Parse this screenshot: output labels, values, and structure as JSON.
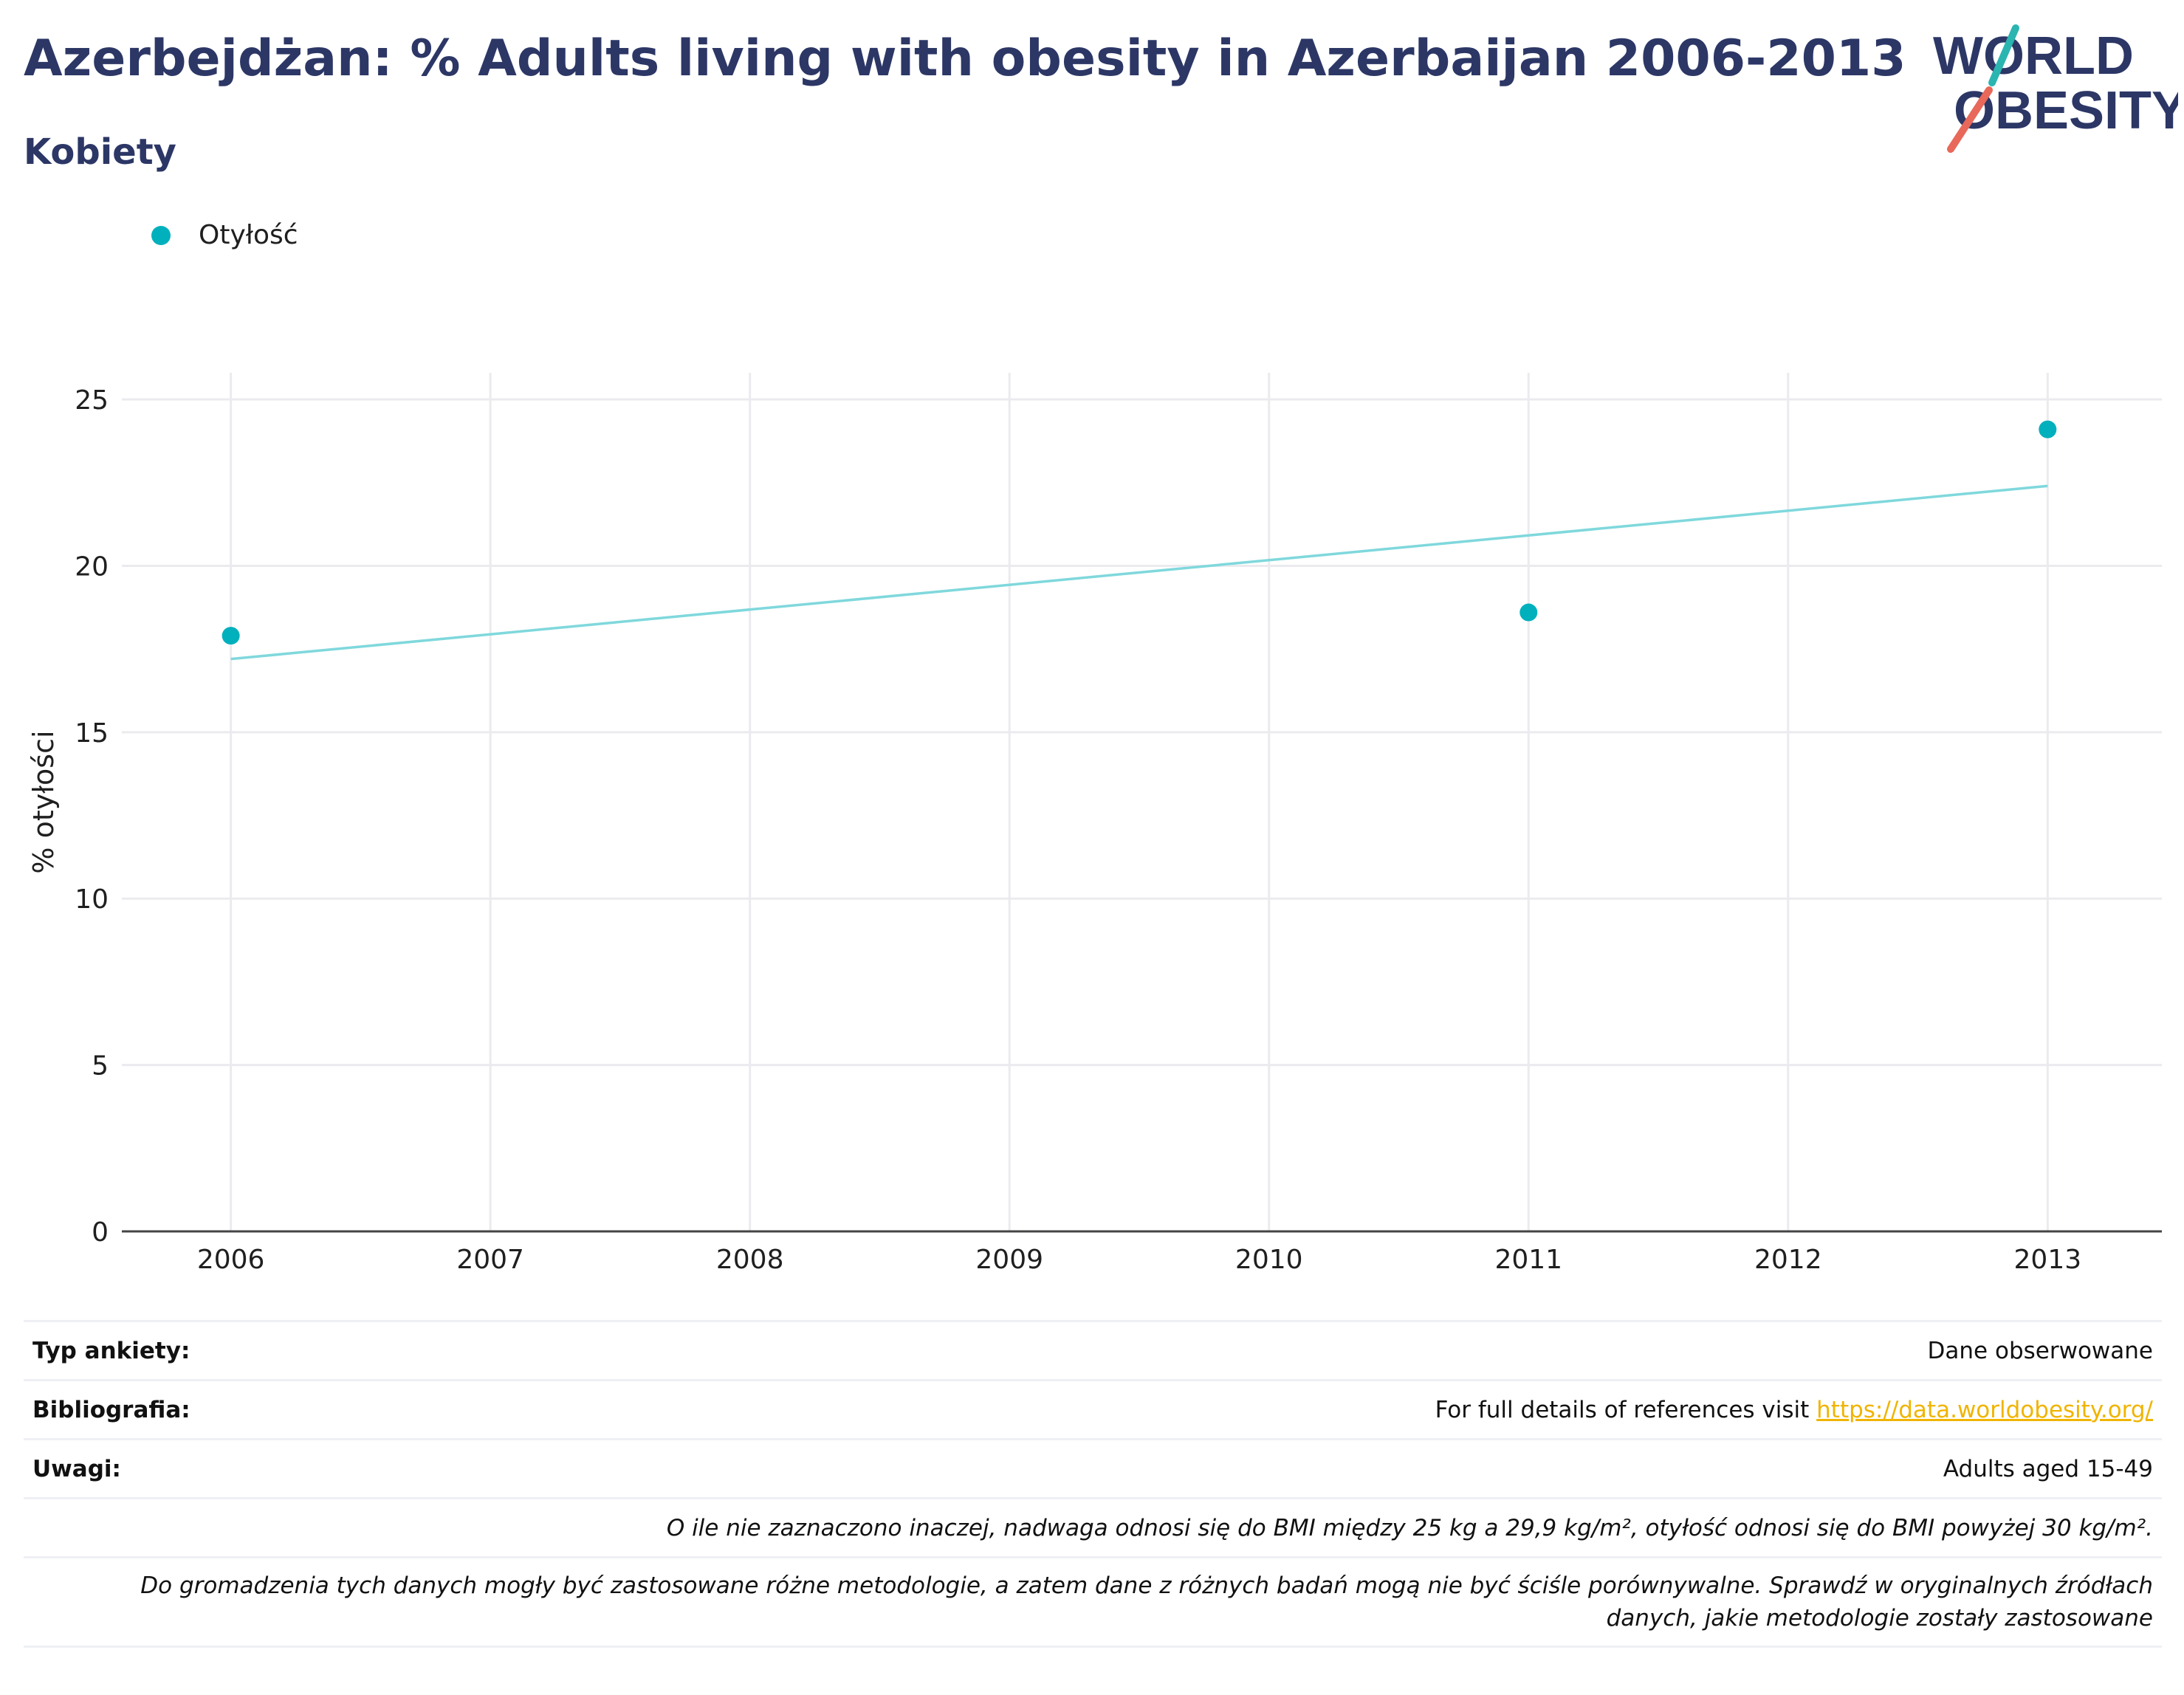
{
  "header": {
    "title": "Azerbejdżan: % Adults living with obesity in Azerbaijan 2006-2013",
    "subtitle": "Kobiety"
  },
  "logo": {
    "line1": "WORLD",
    "line2": "OBESITY",
    "teal_color": "#2bb5b0",
    "red_color": "#e8685a",
    "text_color": "#2c3766"
  },
  "legend": {
    "label": "Otyłość",
    "color": "#00b0bc"
  },
  "chart_data": {
    "type": "scatter",
    "ylabel": "% otyłości",
    "xlabel": "",
    "x_ticks": [
      "2006",
      "2007",
      "2008",
      "2009",
      "2010",
      "2011",
      "2012",
      "2013"
    ],
    "y_ticks": [
      "0",
      "5",
      "10",
      "15",
      "20",
      "25"
    ],
    "xlim": [
      2005.58,
      2013.44
    ],
    "ylim": [
      0,
      25.8
    ],
    "grid": true,
    "legend_position": "top-left",
    "series": [
      {
        "name": "Otyłość",
        "color": "#00b0bc",
        "points": [
          {
            "x": 2006,
            "y": 17.9
          },
          {
            "x": 2011,
            "y": 18.6
          },
          {
            "x": 2013,
            "y": 24.1
          }
        ]
      }
    ],
    "trendline": {
      "color": "#7fd8dc",
      "x": [
        2006,
        2013
      ],
      "y": [
        17.2,
        22.4
      ]
    }
  },
  "info": {
    "survey_type_label": "Typ ankiety:",
    "survey_type_value": "Dane obserwowane",
    "bibliography_label": "Bibliografia:",
    "bibliography_text": "For full details of references visit ",
    "bibliography_link": "https://data.worldobesity.org/",
    "notes_label": "Uwagi:",
    "notes_value": "Adults aged 15-49",
    "definition_note": "O ile nie zaznaczono inaczej, nadwaga odnosi się do BMI między 25 kg a 29,9 kg/m², otyłość odnosi się do BMI powyżej 30 kg/m².",
    "methodology_note_line1": "Do gromadzenia tych danych mogły być zastosowane różne metodologie, a zatem dane z różnych badań mogą nie być ściśle porównywalne. Sprawdź w oryginalnych źródłach",
    "methodology_note_line2": "danych, jakie metodologie zostały zastosowane"
  }
}
